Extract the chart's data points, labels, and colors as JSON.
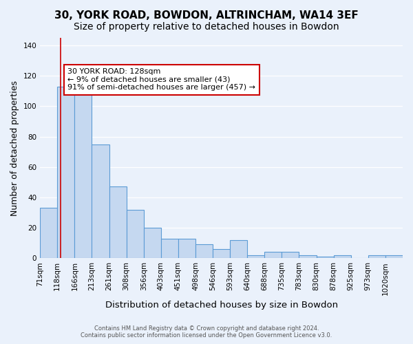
{
  "title": "30, YORK ROAD, BOWDON, ALTRINCHAM, WA14 3EF",
  "subtitle": "Size of property relative to detached houses in Bowdon",
  "xlabel": "Distribution of detached houses by size in Bowdon",
  "ylabel": "Number of detached properties",
  "bin_labels": [
    "71sqm",
    "118sqm",
    "166sqm",
    "213sqm",
    "261sqm",
    "308sqm",
    "356sqm",
    "403sqm",
    "451sqm",
    "498sqm",
    "546sqm",
    "593sqm",
    "640sqm",
    "688sqm",
    "735sqm",
    "783sqm",
    "830sqm",
    "878sqm",
    "925sqm",
    "973sqm",
    "1020sqm"
  ],
  "bar_heights": [
    33,
    113,
    115,
    75,
    47,
    32,
    20,
    13,
    13,
    9,
    6,
    12,
    2,
    4,
    4,
    2,
    1,
    2,
    0,
    2,
    2
  ],
  "bar_color": "#c5d8f0",
  "bar_edge_color": "#5b9bd5",
  "annotation_text": "30 YORK ROAD: 128sqm\n← 9% of detached houses are smaller (43)\n91% of semi-detached houses are larger (457) →",
  "annotation_box_color": "#ffffff",
  "annotation_box_edge": "#cc0000",
  "property_size_sqm": 128,
  "bin_start_sqm": [
    71,
    118,
    166,
    213,
    261,
    308,
    356,
    403,
    451,
    498,
    546,
    593,
    640,
    688,
    735,
    783,
    830,
    878,
    925,
    973,
    1020
  ],
  "ylim": [
    0,
    145
  ],
  "yticks": [
    0,
    20,
    40,
    60,
    80,
    100,
    120,
    140
  ],
  "footer_line1": "Contains HM Land Registry data © Crown copyright and database right 2024.",
  "footer_line2": "Contains public sector information licensed under the Open Government Licence v3.0.",
  "background_color": "#eaf1fb",
  "plot_bg_color": "#eaf1fb",
  "grid_color": "#ffffff",
  "title_fontsize": 11,
  "subtitle_fontsize": 10,
  "tick_fontsize": 7.5,
  "ylabel_fontsize": 9,
  "xlabel_fontsize": 9.5,
  "annotation_fontsize": 8.0
}
